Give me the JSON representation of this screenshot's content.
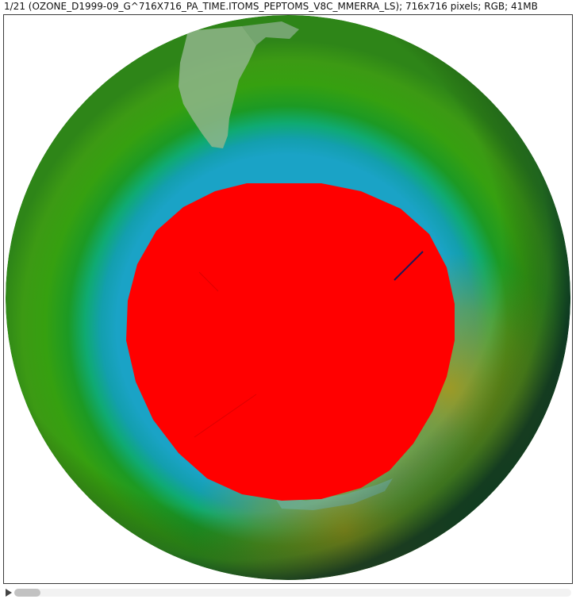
{
  "window": {
    "info_text": "1/21 (OZONE_D1999-09_G^716X716_PA_TIME.ITOMS_PEPTOMS_V8C_MMERRA_LS); 716x716 pixels; RGB; 41MB"
  },
  "image": {
    "icon": "ozone-globe-map",
    "colors": {
      "hole": "#ff0000",
      "ring_inner": "#1aa3c6",
      "ring_teal": "#0fae8a",
      "green": "#2f9c13",
      "olive": "#a79a0a",
      "land": "#8bb48a",
      "edge": "#0b3b3a"
    }
  },
  "stack_slider": {
    "play_icon": "play-icon",
    "current_slice": 1,
    "total_slices": 21
  }
}
